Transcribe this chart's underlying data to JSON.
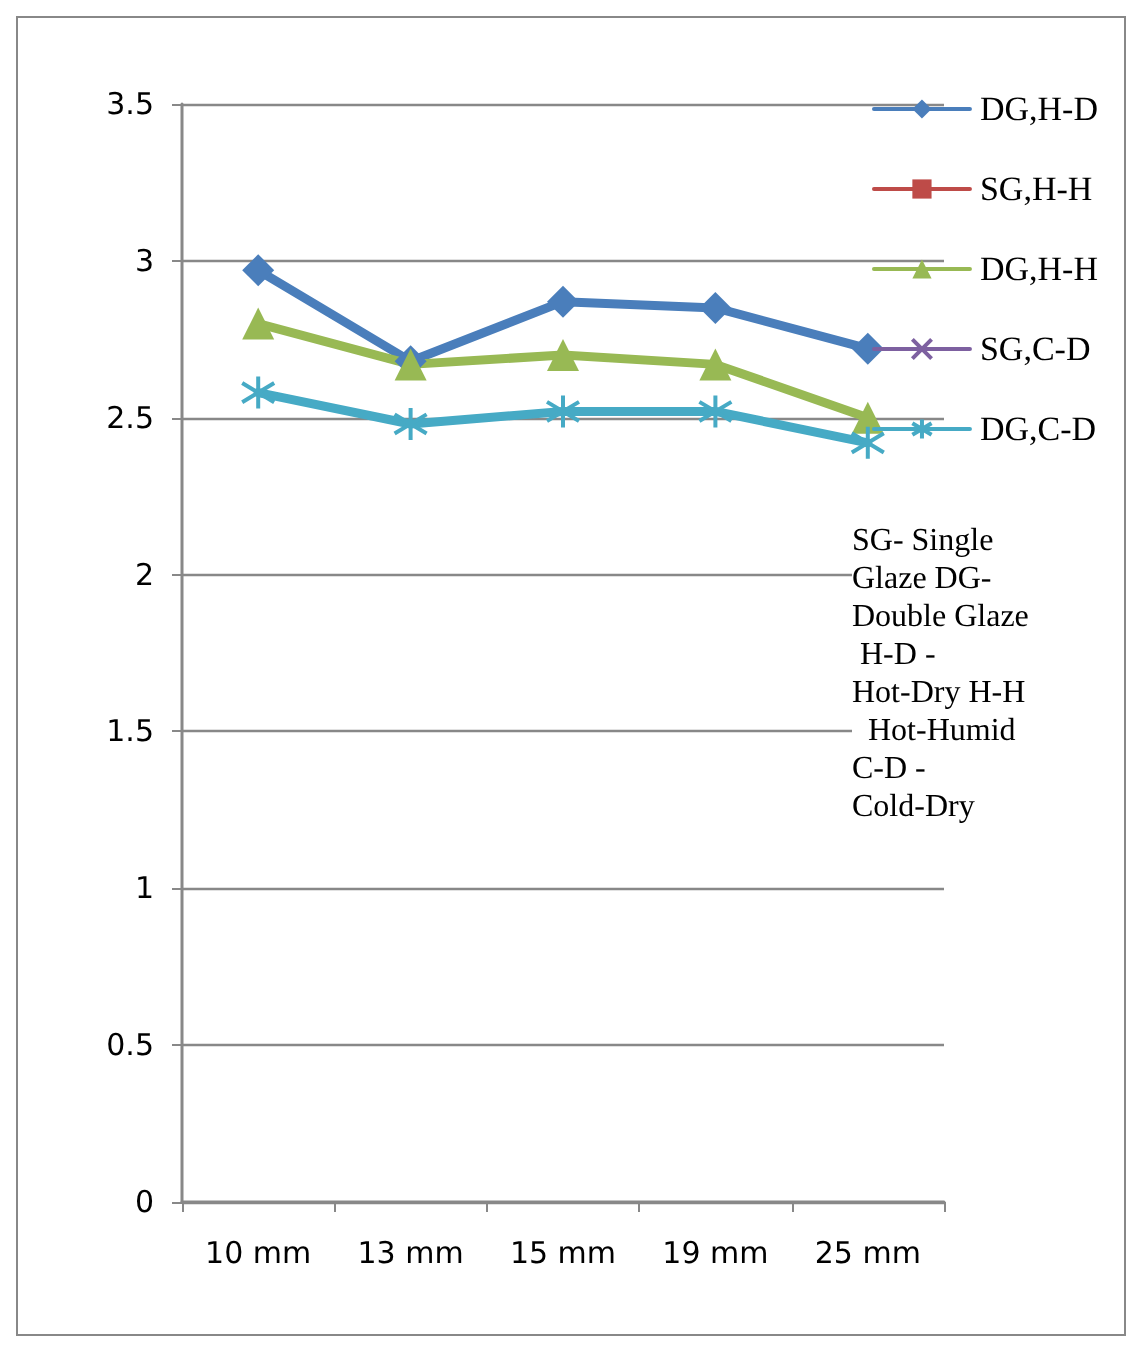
{
  "chart_data": {
    "type": "line",
    "categories": [
      "10 mm",
      "13 mm",
      "15 mm",
      "19 mm",
      "25 mm"
    ],
    "series": [
      {
        "name": "DG,H-D",
        "color": "#4a7ebb",
        "marker": "diamond",
        "values": [
          2.97,
          2.68,
          2.87,
          2.85,
          2.72
        ]
      },
      {
        "name": "SG,H-H",
        "color": "#be4b48",
        "marker": "square",
        "values": [
          null,
          null,
          null,
          null,
          null
        ]
      },
      {
        "name": "DG,H-H",
        "color": "#98b954",
        "marker": "triangle",
        "values": [
          2.8,
          2.67,
          2.7,
          2.67,
          2.5
        ]
      },
      {
        "name": "SG,C-D",
        "color": "#7d60a0",
        "marker": "cross",
        "values": [
          null,
          null,
          null,
          null,
          null
        ]
      },
      {
        "name": "DG,C-D",
        "color": "#46aac5",
        "marker": "star",
        "values": [
          2.58,
          2.48,
          2.52,
          2.52,
          2.42
        ]
      }
    ],
    "ylim": [
      0,
      3.5
    ],
    "yticks": [
      0,
      0.5,
      1,
      1.5,
      2,
      2.5,
      3,
      3.5
    ],
    "grid": "y",
    "legend": "right",
    "line_style": "solid",
    "annotations": [
      "SG- Single Glaze DG- Double Glaze H-D - Hot-Dry H-H   Hot-Humid C-D - Cold-Dry"
    ]
  }
}
